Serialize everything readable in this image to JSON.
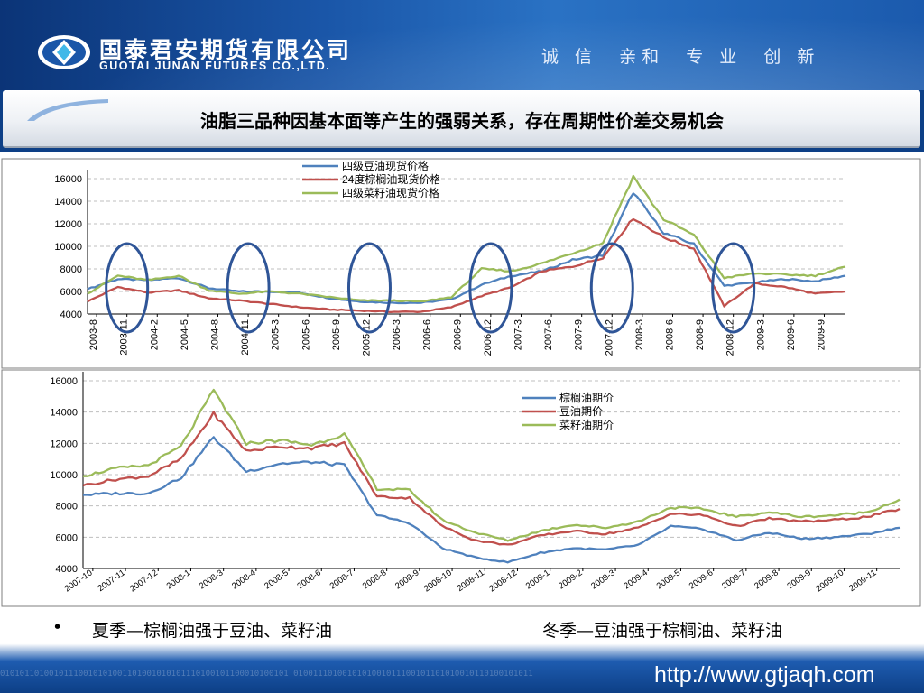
{
  "header": {
    "company_cn": "国泰君安期货有限公司",
    "company_en": "GUOTAI JUNAN FUTURES CO.,LTD.",
    "slogan": "诚 信  亲和  专 业  创 新",
    "colors": {
      "brand_blue": "#0d3f86",
      "accent": "#2a72c4"
    },
    "logo_icon": "guotai-junan-logo"
  },
  "title": "油脂三品种因基本面等产生的强弱关系，存在周期性价差交易机会",
  "chart_data": [
    {
      "type": "line",
      "legend": [
        "四级豆油现货价格",
        "24度棕榈油现货价格",
        "四级菜籽油现货价格"
      ],
      "legend_position": "top-center",
      "ylim": [
        4000,
        16000
      ],
      "yticks": [
        4000,
        6000,
        8000,
        10000,
        12000,
        14000,
        16000
      ],
      "xticks": [
        "2003-8",
        "2003-11",
        "2004-2",
        "2004-5",
        "2004-8",
        "2004-11",
        "2005-3",
        "2005-6",
        "2005-9",
        "2005-12",
        "2006-3",
        "2006-6",
        "2006-9",
        "2006-12",
        "2007-3",
        "2007-6",
        "2007-9",
        "2007-12",
        "2008-3",
        "2008-6",
        "2008-9",
        "2008-12",
        "2009-3",
        "2009-6",
        "2009-9"
      ],
      "colors": [
        "#4f81bd",
        "#c0504d",
        "#9bbb59"
      ],
      "grid": "dashed-horizontal",
      "highlight_ellipses_near": [
        "2003-11",
        "2004-11",
        "2005-12",
        "2006-12",
        "2007-12",
        "2008-12"
      ],
      "x": [
        0,
        1,
        2,
        3,
        4,
        5,
        6,
        7,
        8,
        9,
        10,
        11,
        12,
        13,
        14,
        15,
        16,
        17,
        18,
        19,
        20,
        21,
        22,
        23,
        24,
        25
      ],
      "series": [
        {
          "name": "四级豆油现货价格",
          "values": [
            6200,
            7100,
            7000,
            7200,
            6300,
            6000,
            6000,
            5900,
            5400,
            5100,
            5000,
            5000,
            5300,
            6600,
            7400,
            7800,
            8800,
            9200,
            14800,
            11200,
            10200,
            6500,
            6800,
            7100,
            6900,
            7400
          ]
        },
        {
          "name": "24度棕榈油现货价格",
          "values": [
            5100,
            6400,
            5900,
            6100,
            5400,
            5200,
            4900,
            4600,
            4400,
            4300,
            4200,
            4200,
            4600,
            5600,
            6400,
            7800,
            8200,
            9000,
            12500,
            10800,
            9800,
            4700,
            6700,
            6400,
            5800,
            6000
          ]
        },
        {
          "name": "四级菜籽油现货价格",
          "values": [
            5800,
            7400,
            7000,
            7400,
            6100,
            5800,
            6000,
            5800,
            5500,
            5200,
            5200,
            5100,
            5500,
            8000,
            7800,
            8500,
            9400,
            10300,
            16200,
            12400,
            11000,
            7200,
            7600,
            7500,
            7400,
            8200
          ]
        }
      ]
    },
    {
      "type": "line",
      "legend": [
        "棕榈油期价",
        "豆油期价",
        "菜籽油期价"
      ],
      "legend_position": "top-right",
      "ylim": [
        4000,
        16000
      ],
      "yticks": [
        4000,
        6000,
        8000,
        10000,
        12000,
        14000,
        16000
      ],
      "xticks": [
        "2007-10",
        "2007-11",
        "2007-12",
        "2008-1",
        "2008-3",
        "2008-4",
        "2008-5",
        "2008-6",
        "2008-7",
        "2008-8",
        "2008-9",
        "2008-10",
        "2008-11",
        "2008-12",
        "2009-1",
        "2009-2",
        "2009-3",
        "2009-4",
        "2009-5",
        "2009-6",
        "2009-7",
        "2009-8",
        "2009-9",
        "2009-10",
        "2009-11"
      ],
      "colors": [
        "#4f81bd",
        "#c0504d",
        "#9bbb59"
      ],
      "grid": "dashed-horizontal",
      "x": [
        0,
        1,
        2,
        3,
        4,
        5,
        6,
        7,
        8,
        9,
        10,
        11,
        12,
        13,
        14,
        15,
        16,
        17,
        18,
        19,
        20,
        21,
        22,
        23,
        24,
        25
      ],
      "series": [
        {
          "name": "棕榈油期价",
          "values": [
            8700,
            8800,
            8800,
            9800,
            12400,
            10200,
            10700,
            10800,
            10600,
            7400,
            6900,
            5300,
            4700,
            4400,
            5000,
            5300,
            5200,
            5500,
            6700,
            6500,
            5800,
            6300,
            5900,
            6000,
            6200,
            6600
          ]
        },
        {
          "name": "豆油期价",
          "values": [
            9300,
            9700,
            9900,
            11000,
            13900,
            11500,
            11800,
            11700,
            12000,
            8600,
            8500,
            6700,
            5800,
            5500,
            6100,
            6400,
            6200,
            6600,
            7500,
            7400,
            6700,
            7200,
            7000,
            7100,
            7300,
            7800
          ]
        },
        {
          "name": "菜籽油期价",
          "values": [
            9900,
            10400,
            10600,
            11800,
            15400,
            12000,
            12200,
            11900,
            12600,
            9100,
            9000,
            7100,
            6300,
            5800,
            6400,
            6800,
            6600,
            7000,
            7900,
            7800,
            7300,
            7600,
            7300,
            7400,
            7600,
            8400
          ]
        }
      ]
    }
  ],
  "bullets": {
    "dot": "•",
    "summer": "夏季—棕榈油强于豆油、菜籽油",
    "winter": "冬季—豆油强于棕榈油、菜籽油"
  },
  "footer": {
    "url": "http://www.gtjaqh.com",
    "binary_deco": "01010110100101110010101001101001010101110100101100010100101 0100111010010101001011100101101010010110100101011"
  }
}
